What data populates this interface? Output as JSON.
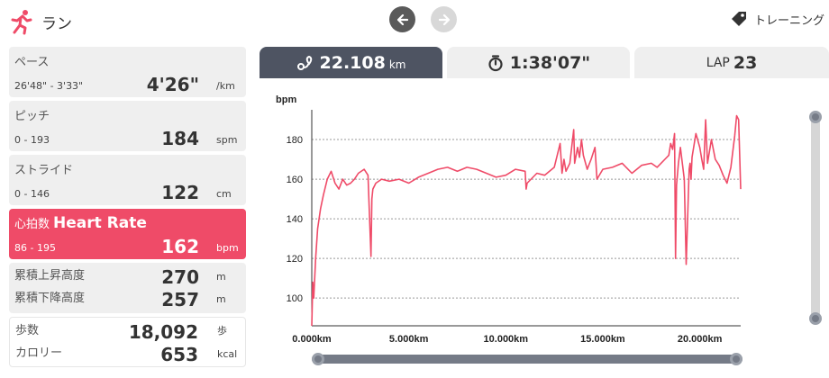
{
  "header": {
    "title": "ラン",
    "run_icon": "runner-icon",
    "prev_icon": "arrow-left-icon",
    "next_icon": "arrow-right-icon",
    "training_label": "トレーニング",
    "training_icon": "tag-icon"
  },
  "metrics": {
    "pace": {
      "label": "ペース",
      "range": "26'48\" - 3'33\"",
      "value": "4'26\"",
      "unit": "/km"
    },
    "pitch": {
      "label": "ピッチ",
      "range": "0 - 193",
      "value": "184",
      "unit": "spm"
    },
    "stride": {
      "label": "ストライド",
      "range": "0 - 146",
      "value": "122",
      "unit": "cm"
    },
    "heart_rate": {
      "label": "心拍数",
      "label_en": "Heart Rate",
      "range": "86 - 195",
      "value": "162",
      "unit": "bpm"
    },
    "ascent": {
      "label": "累積上昇高度",
      "value": "270",
      "unit": "m"
    },
    "descent": {
      "label": "累積下降高度",
      "value": "257",
      "unit": "m"
    },
    "steps": {
      "label": "歩数",
      "value": "18,092",
      "unit": "歩"
    },
    "calories": {
      "label": "カロリー",
      "value": "653",
      "unit": "kcal"
    }
  },
  "tabs": {
    "distance": {
      "value": "22.108",
      "unit": "km",
      "icon": "route-icon"
    },
    "time": {
      "value": "1:38'07\"",
      "icon": "stopwatch-icon"
    },
    "lap": {
      "prefix": "LAP",
      "value": "23"
    }
  },
  "colors": {
    "accent": "#ef4b68",
    "tab_active": "#4e5462",
    "line": "#ef4b68"
  },
  "chart_data": {
    "type": "line",
    "ylabel": "bpm",
    "xlim": [
      0,
      22.108
    ],
    "ylim": [
      86,
      195
    ],
    "yticks": [
      100,
      120,
      140,
      160,
      180
    ],
    "xticks": [
      0,
      5,
      10,
      15,
      20
    ],
    "xtick_labels": [
      "0.000km",
      "5.000km",
      "10.000km",
      "15.000km",
      "20.000km"
    ],
    "grid": "horizontal dotted",
    "series": [
      {
        "x": [
          0.0,
          0.05,
          0.1,
          0.2,
          0.3,
          0.45,
          0.6,
          0.8,
          1.0,
          1.2,
          1.4,
          1.6,
          1.8,
          2.0,
          2.2,
          2.4,
          2.7,
          2.9,
          3.05,
          3.1,
          3.15,
          3.3,
          3.6,
          4.0,
          4.5,
          5.0,
          5.5,
          6.0,
          6.5,
          7.0,
          7.5,
          8.0,
          8.5,
          9.0,
          9.5,
          10.0,
          10.5,
          11.0,
          11.05,
          11.1,
          11.6,
          12.0,
          12.5,
          12.8,
          12.9,
          13.0,
          13.1,
          13.3,
          13.5,
          13.55,
          13.7,
          13.8,
          13.9,
          14.0,
          14.2,
          14.4,
          14.6,
          14.7,
          15.0,
          15.5,
          16.0,
          16.5,
          17.0,
          17.5,
          17.8,
          18.0,
          18.2,
          18.4,
          18.5,
          18.6,
          18.7,
          18.75,
          18.8,
          18.9,
          19.0,
          19.2,
          19.3,
          19.45,
          19.5,
          19.55,
          19.6,
          19.8,
          20.0,
          20.1,
          20.2,
          20.3,
          20.4,
          20.6,
          20.8,
          21.0,
          21.2,
          21.4,
          21.6,
          21.8,
          21.9,
          22.0,
          22.108
        ],
        "y": [
          86,
          108,
          100,
          120,
          135,
          145,
          152,
          160,
          164,
          158,
          155,
          160,
          157,
          158,
          160,
          163,
          165,
          162,
          121,
          150,
          155,
          158,
          160,
          159,
          160,
          158,
          161,
          163,
          165,
          166,
          164,
          166,
          165,
          163,
          161,
          162,
          165,
          164,
          155,
          158,
          163,
          162,
          166,
          178,
          163,
          170,
          164,
          168,
          185,
          168,
          176,
          171,
          180,
          172,
          165,
          170,
          176,
          160,
          165,
          166,
          168,
          163,
          167,
          168,
          166,
          168,
          170,
          172,
          178,
          175,
          183,
          120,
          157,
          168,
          176,
          160,
          117,
          165,
          168,
          160,
          171,
          183,
          176,
          170,
          165,
          190,
          168,
          180,
          170,
          167,
          162,
          158,
          166,
          182,
          192,
          190,
          155
        ]
      }
    ]
  }
}
